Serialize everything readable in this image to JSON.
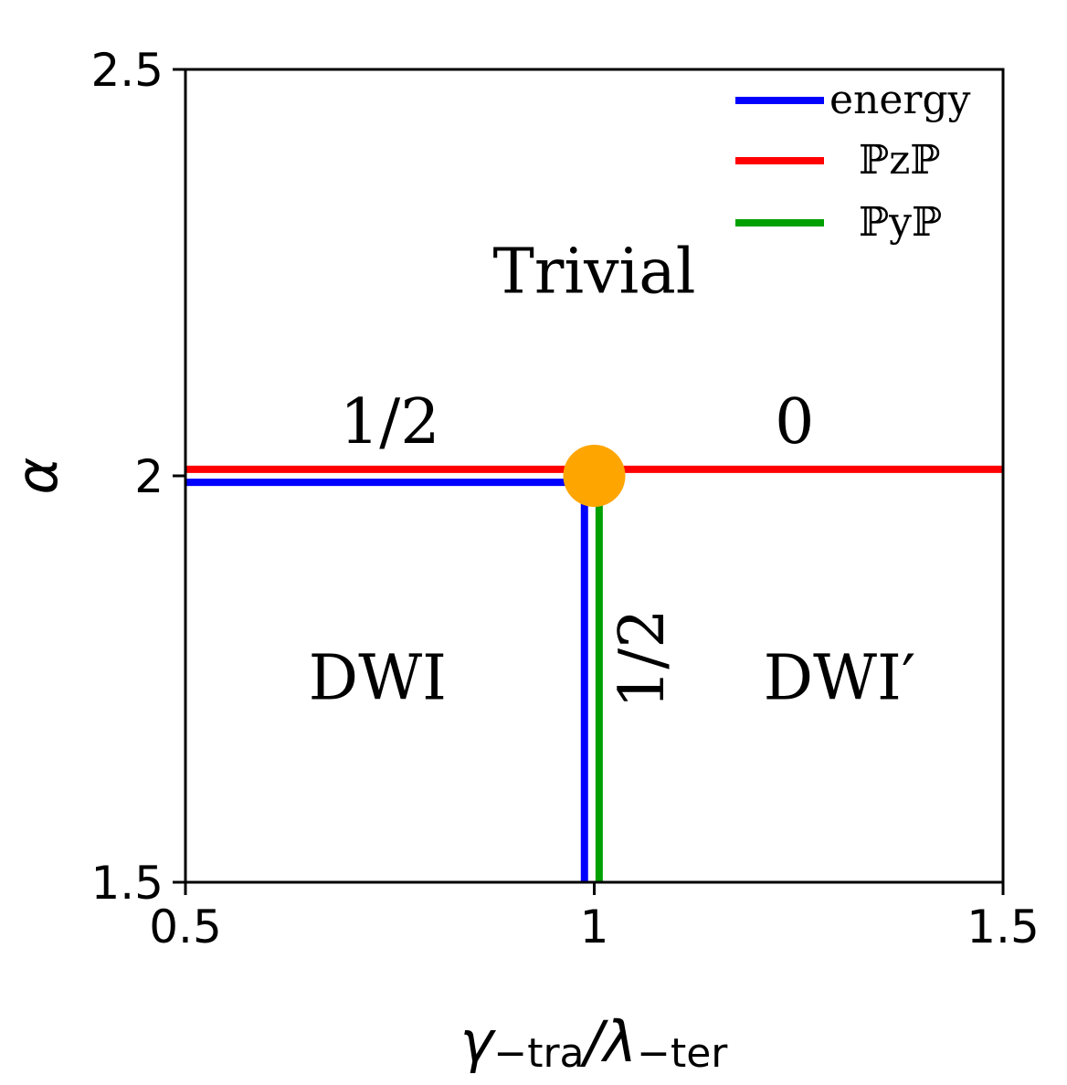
{
  "chart_data": {
    "type": "line",
    "title": "",
    "xlabel_main": "γ",
    "xlabel_sub1": "−tra",
    "xlabel_slash": "/λ",
    "xlabel_sub2": "−ter",
    "ylabel": "α",
    "xlim": [
      0.5,
      1.5
    ],
    "ylim": [
      1.5,
      2.5
    ],
    "xticks": [
      0.5,
      1,
      1.5
    ],
    "xtick_labels": [
      "0.5",
      "1",
      "1.5"
    ],
    "yticks": [
      1.5,
      2,
      2.5
    ],
    "ytick_labels": [
      "1.5",
      "2",
      "2.5"
    ],
    "grid": false,
    "legend_position": "top-right",
    "series": [
      {
        "name": "energy",
        "color": "#0000ff",
        "segments": [
          [
            [
              0.5,
              1.992
            ],
            [
              0.988,
              1.992
            ],
            [
              0.988,
              1.5
            ]
          ]
        ]
      },
      {
        "name": "ℙzℙ",
        "color": "#ff0000",
        "segments": [
          [
            [
              0.5,
              2.008
            ],
            [
              1.5,
              2.008
            ]
          ]
        ]
      },
      {
        "name": "ℙyℙ",
        "color": "#00a000",
        "segments": [
          [
            [
              1.006,
              2.0
            ],
            [
              1.006,
              1.5
            ]
          ]
        ]
      }
    ],
    "critical_point": {
      "x": 1.0,
      "y": 2.0,
      "color": "#ffa500"
    },
    "annotations": [
      {
        "text": "Trivial",
        "x": 1.0,
        "y": 2.245,
        "color": "#000000",
        "rotate": false
      },
      {
        "text": "1/2",
        "x": 0.75,
        "y": 2.06,
        "color": "#ff0000",
        "rotate": false
      },
      {
        "text": "0",
        "x": 1.245,
        "y": 2.06,
        "color": "#ff0000",
        "rotate": false
      },
      {
        "text": "DWI",
        "x": 0.735,
        "y": 1.745,
        "color": "#000000",
        "rotate": false
      },
      {
        "text": "DWI′",
        "x": 1.3,
        "y": 1.745,
        "color": "#000000",
        "rotate": false
      },
      {
        "text": "1/2",
        "x": 1.065,
        "y": 1.775,
        "color": "#00a000",
        "rotate": true
      }
    ]
  }
}
